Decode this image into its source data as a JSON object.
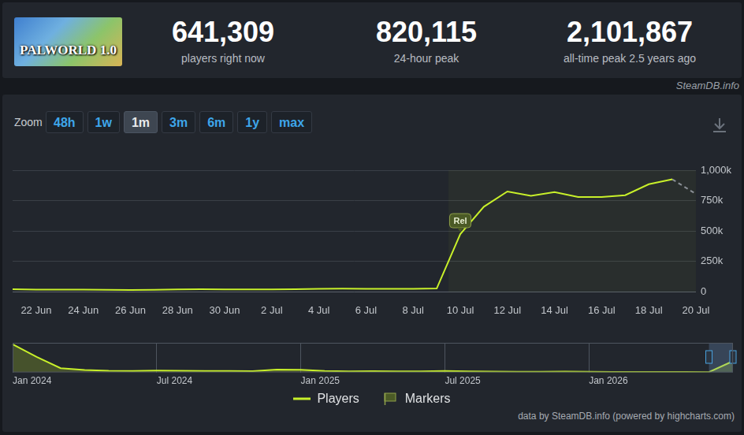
{
  "header": {
    "image_text": "PALWORLD 1.0",
    "stats": [
      {
        "value": "641,309",
        "label": "players right now"
      },
      {
        "value": "820,115",
        "label": "24-hour peak"
      },
      {
        "value": "2,101,867",
        "label": "all-time peak 2.5 years ago"
      }
    ],
    "source": "SteamDB.info"
  },
  "zoom": {
    "label": "Zoom",
    "buttons": [
      "48h",
      "1w",
      "1m",
      "3m",
      "6m",
      "1y",
      "max"
    ],
    "active": "1m"
  },
  "chart_data": [
    {
      "type": "line",
      "categories": [
        null,
        "22 Jun",
        null,
        "24 Jun",
        null,
        "26 Jun",
        null,
        "28 Jun",
        null,
        "30 Jun",
        null,
        "2 Jul",
        null,
        "4 Jul",
        null,
        "6 Jul",
        null,
        "8 Jul",
        null,
        "10 Jul",
        null,
        "12 Jul",
        null,
        "14 Jul",
        null,
        "16 Jul",
        null,
        "18 Jul",
        null,
        "20 Jul"
      ],
      "series": [
        {
          "name": "Players",
          "color": "#c8f02a",
          "values": [
            22000,
            19000,
            18000,
            18000,
            17000,
            16000,
            17000,
            21000,
            22000,
            20000,
            20000,
            21000,
            22000,
            25000,
            27000,
            25000,
            26000,
            26000,
            28000,
            475000,
            700000,
            825000,
            790000,
            820000,
            780000,
            780000,
            795000,
            885000,
            925000,
            null
          ]
        },
        {
          "name": "Players",
          "color": "#8a8f96",
          "line_style": "dashed",
          "values": [
            null,
            null,
            null,
            null,
            null,
            null,
            null,
            null,
            null,
            null,
            null,
            null,
            null,
            null,
            null,
            null,
            null,
            null,
            null,
            null,
            null,
            null,
            null,
            null,
            null,
            null,
            null,
            null,
            925000,
            805000
          ]
        }
      ],
      "ylim": [
        0,
        1000000
      ],
      "yticks": [
        0,
        {
          "value": 250000,
          "label": "250k"
        },
        {
          "value": 500000,
          "label": "500k"
        },
        {
          "value": 750000,
          "label": "750k"
        },
        {
          "value": 1000000,
          "label": "1,000k"
        }
      ],
      "grid": true,
      "legend": "bottom",
      "annotations": [
        {
          "text": "Rel",
          "x": "10 Jul"
        }
      ]
    },
    {
      "type": "area",
      "categories": [
        "Jan 2024",
        null,
        null,
        null,
        null,
        null,
        "Jul 2024",
        null,
        null,
        null,
        null,
        null,
        "Jan 2025",
        null,
        null,
        null,
        null,
        null,
        "Jul 2025",
        null,
        null,
        null,
        null,
        null,
        "Jan 2026",
        null,
        null,
        null,
        null,
        null,
        null
      ],
      "series": [
        {
          "name": "Players",
          "color": "#c8f02a",
          "values": [
            2000000,
            1100000,
            300000,
            180000,
            120000,
            110000,
            130000,
            120000,
            110000,
            100000,
            90000,
            200000,
            190000,
            110000,
            80000,
            90000,
            70000,
            80000,
            110000,
            80000,
            60000,
            50000,
            50000,
            60000,
            50000,
            40000,
            40000,
            40000,
            30000,
            25000,
            800000
          ]
        }
      ],
      "ylim": [
        0,
        2100000
      ],
      "grid": true,
      "tick_labels": "x"
    }
  ],
  "legend_items": [
    {
      "name": "Players",
      "color": "#c8f02a"
    },
    {
      "name": "Markers",
      "color": "#4b5a26"
    }
  ],
  "footer": "data by SteamDB.info (powered by highcharts.com)"
}
